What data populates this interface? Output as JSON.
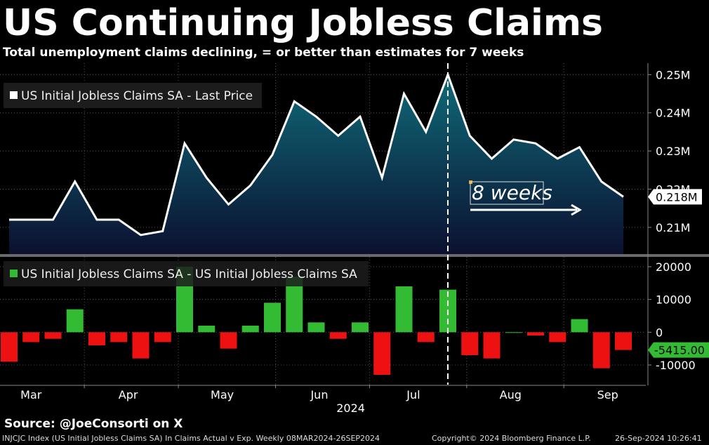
{
  "title": "US Continuing Jobless Claims",
  "subtitle": "Total unemployment claims declining, = or better than estimates for 7 weeks",
  "source": "Source: @JoeConsorti on X",
  "footer": {
    "index": "INJCJC Index (US Initial Jobless Claims SA) In Claims Actual v Exp.  Weekly 08MAR2024-26SEP2024",
    "copyright": "Copyright© 2024 Bloomberg Finance L.P.",
    "timestamp": "26-Sep-2024 10:26:41"
  },
  "chart_data": [
    {
      "type": "area",
      "legend": "US Initial Jobless Claims SA - Last Price",
      "x": [
        "2024-03-08",
        "2024-03-15",
        "2024-03-22",
        "2024-03-29",
        "2024-04-05",
        "2024-04-12",
        "2024-04-19",
        "2024-04-26",
        "2024-05-03",
        "2024-05-10",
        "2024-05-17",
        "2024-05-24",
        "2024-05-31",
        "2024-06-07",
        "2024-06-14",
        "2024-06-21",
        "2024-06-28",
        "2024-07-05",
        "2024-07-12",
        "2024-07-19",
        "2024-07-26",
        "2024-08-02",
        "2024-08-09",
        "2024-08-16",
        "2024-08-23",
        "2024-08-30",
        "2024-09-06",
        "2024-09-13",
        "2024-09-20"
      ],
      "values": [
        212000,
        212000,
        212000,
        222000,
        212000,
        212000,
        208000,
        209000,
        232000,
        223000,
        216000,
        221000,
        229000,
        243000,
        239000,
        234000,
        239000,
        223000,
        245000,
        235000,
        250000,
        234000,
        228000,
        233000,
        232000,
        228000,
        231000,
        222000,
        218000
      ],
      "ylim": [
        0.203,
        0.253
      ],
      "yticks": [
        "0.25M",
        "0.24M",
        "0.23M",
        "0.22M",
        "0.21M"
      ],
      "last_value_label": "0.218M",
      "annotation": "8 weeks",
      "line_color": "#ffffff",
      "fill_top_color": "#0f6a78",
      "fill_bottom_color": "#0b1030"
    },
    {
      "type": "bar",
      "legend": "US Initial Jobless Claims SA - US Initial Jobless Claims SA",
      "x": [
        "2024-03-08",
        "2024-03-15",
        "2024-03-22",
        "2024-03-29",
        "2024-04-05",
        "2024-04-12",
        "2024-04-19",
        "2024-04-26",
        "2024-05-03",
        "2024-05-10",
        "2024-05-17",
        "2024-05-24",
        "2024-05-31",
        "2024-06-07",
        "2024-06-14",
        "2024-06-21",
        "2024-06-28",
        "2024-07-05",
        "2024-07-12",
        "2024-07-19",
        "2024-07-26",
        "2024-08-02",
        "2024-08-09",
        "2024-08-16",
        "2024-08-23",
        "2024-08-30",
        "2024-09-06",
        "2024-09-13",
        "2024-09-20"
      ],
      "values": [
        -9000,
        -3000,
        -2000,
        7000,
        -4000,
        -3000,
        -8000,
        -3000,
        20000,
        2000,
        -5000,
        2000,
        9000,
        17000,
        3000,
        -2000,
        3000,
        -13000,
        14000,
        -3000,
        13000,
        -7000,
        -8000,
        0,
        -1000,
        -3000,
        4000,
        -11000,
        -5415
      ],
      "ylim": [
        -16000,
        23000
      ],
      "yticks": [
        "20000",
        "10000",
        "0",
        "-10000"
      ],
      "last_value_label": "-5415.00",
      "positive_color": "#33bb33",
      "negative_color": "#ee1111"
    }
  ],
  "x_axis": {
    "months": [
      "Mar",
      "Apr",
      "May",
      "Jun",
      "Jul",
      "Aug",
      "Sep"
    ],
    "year": "2024"
  }
}
